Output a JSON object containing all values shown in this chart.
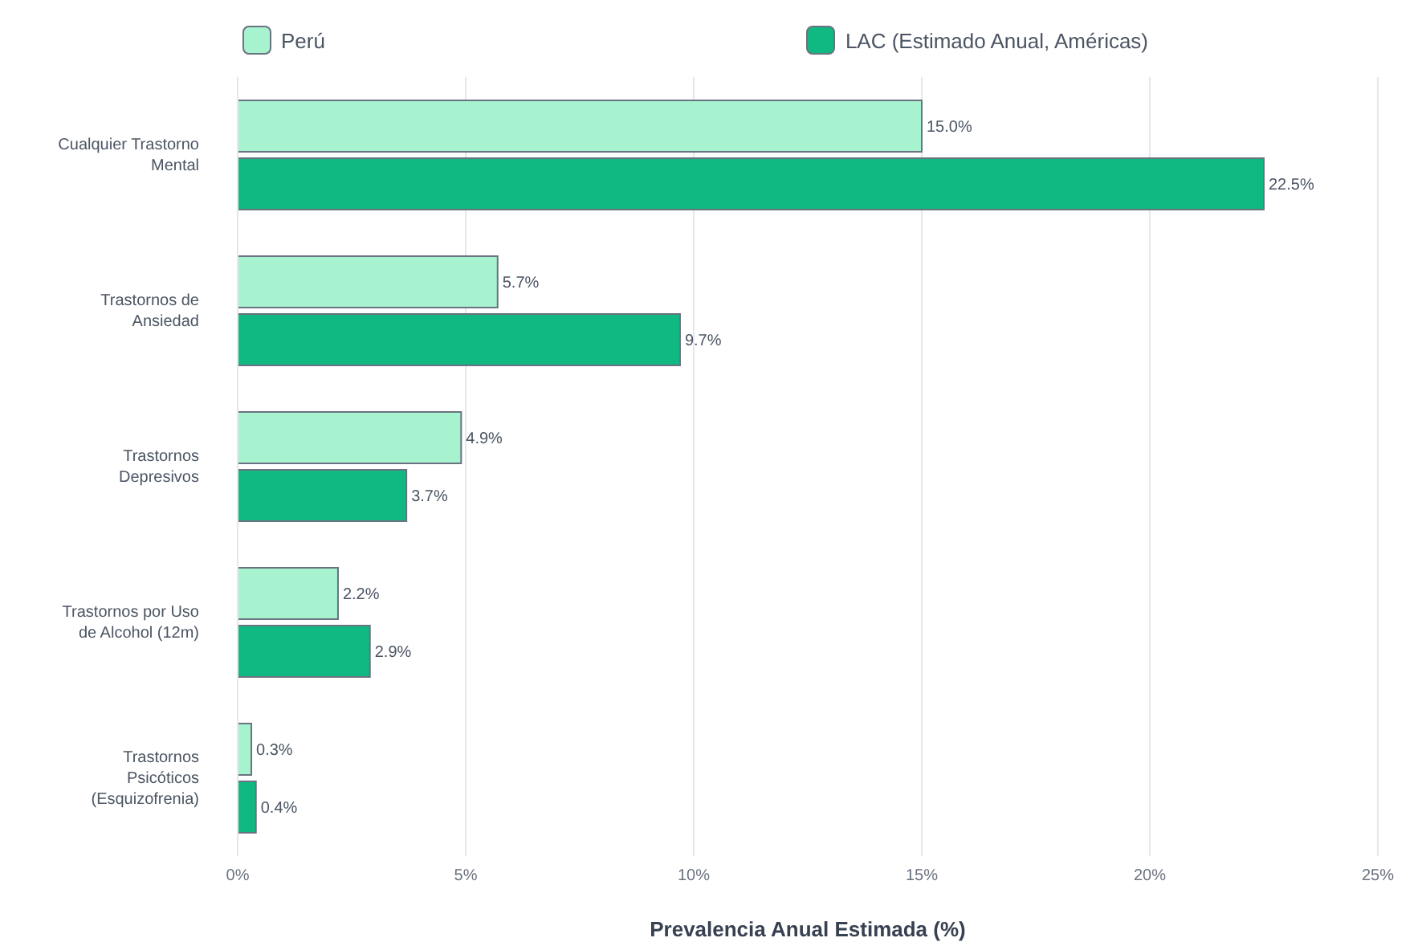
{
  "chart_data": {
    "type": "bar",
    "orientation": "horizontal",
    "xlabel": "Prevalencia Anual Estimada (%)",
    "categories": [
      "Cualquier Trastorno Mental",
      "Trastornos de Ansiedad",
      "Trastornos Depresivos",
      "Trastornos por Uso de Alcohol (12m)",
      "Trastornos Psicóticos (Esquizofrenia)"
    ],
    "series": [
      {
        "name": "Perú",
        "color": "#a7f3d0",
        "values": [
          15.0,
          5.7,
          4.9,
          2.2,
          0.3
        ],
        "value_labels": [
          "15.0%",
          "5.7%",
          "4.9%",
          "2.2%",
          "0.3%"
        ]
      },
      {
        "name": "LAC (Estimado Anual, Américas)",
        "color": "#10b981",
        "values": [
          22.5,
          9.7,
          3.7,
          2.9,
          0.4
        ],
        "value_labels": [
          "22.5%",
          "9.7%",
          "3.7%",
          "2.9%",
          "0.4%"
        ]
      }
    ],
    "xlim": [
      0,
      25
    ],
    "xticks": [
      {
        "value": 0,
        "label": "0%"
      },
      {
        "value": 5,
        "label": "5%"
      },
      {
        "value": 10,
        "label": "10%"
      },
      {
        "value": 15,
        "label": "15%"
      },
      {
        "value": 20,
        "label": "20%"
      },
      {
        "value": 25,
        "label": "25%"
      }
    ],
    "grid": "x",
    "legend": "top"
  }
}
